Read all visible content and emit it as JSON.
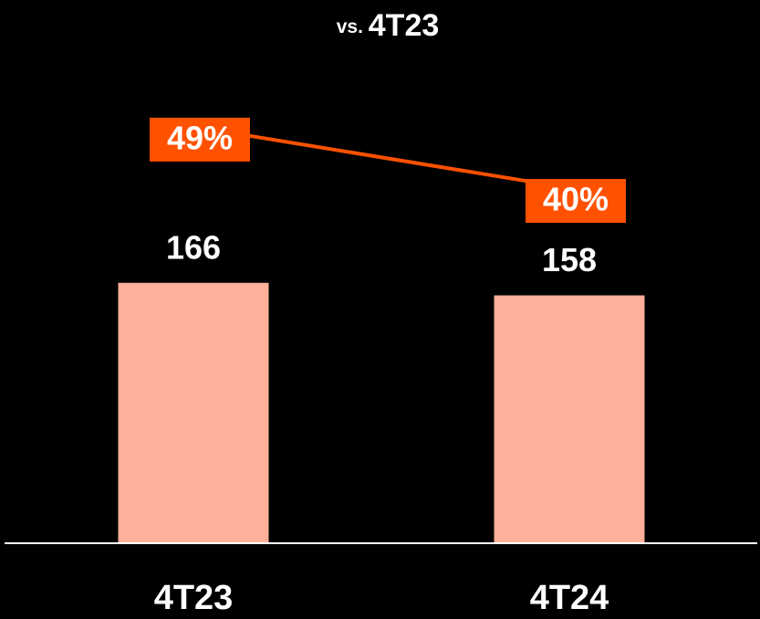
{
  "chart_data": {
    "type": "bar_line",
    "title": "vs. 4T23",
    "categories": [
      "4T23",
      "4T24"
    ],
    "series": [
      {
        "type": "bar",
        "color": "#fdb09a",
        "values": [
          166,
          158
        ]
      },
      {
        "type": "line",
        "axis": "y2",
        "color": "#ff5100",
        "values": [
          49,
          40
        ],
        "value_labels": [
          "49%",
          "40%"
        ]
      }
    ],
    "ylim": [
      0,
      330
    ],
    "y2lim": [
      -12,
      64
    ]
  }
}
